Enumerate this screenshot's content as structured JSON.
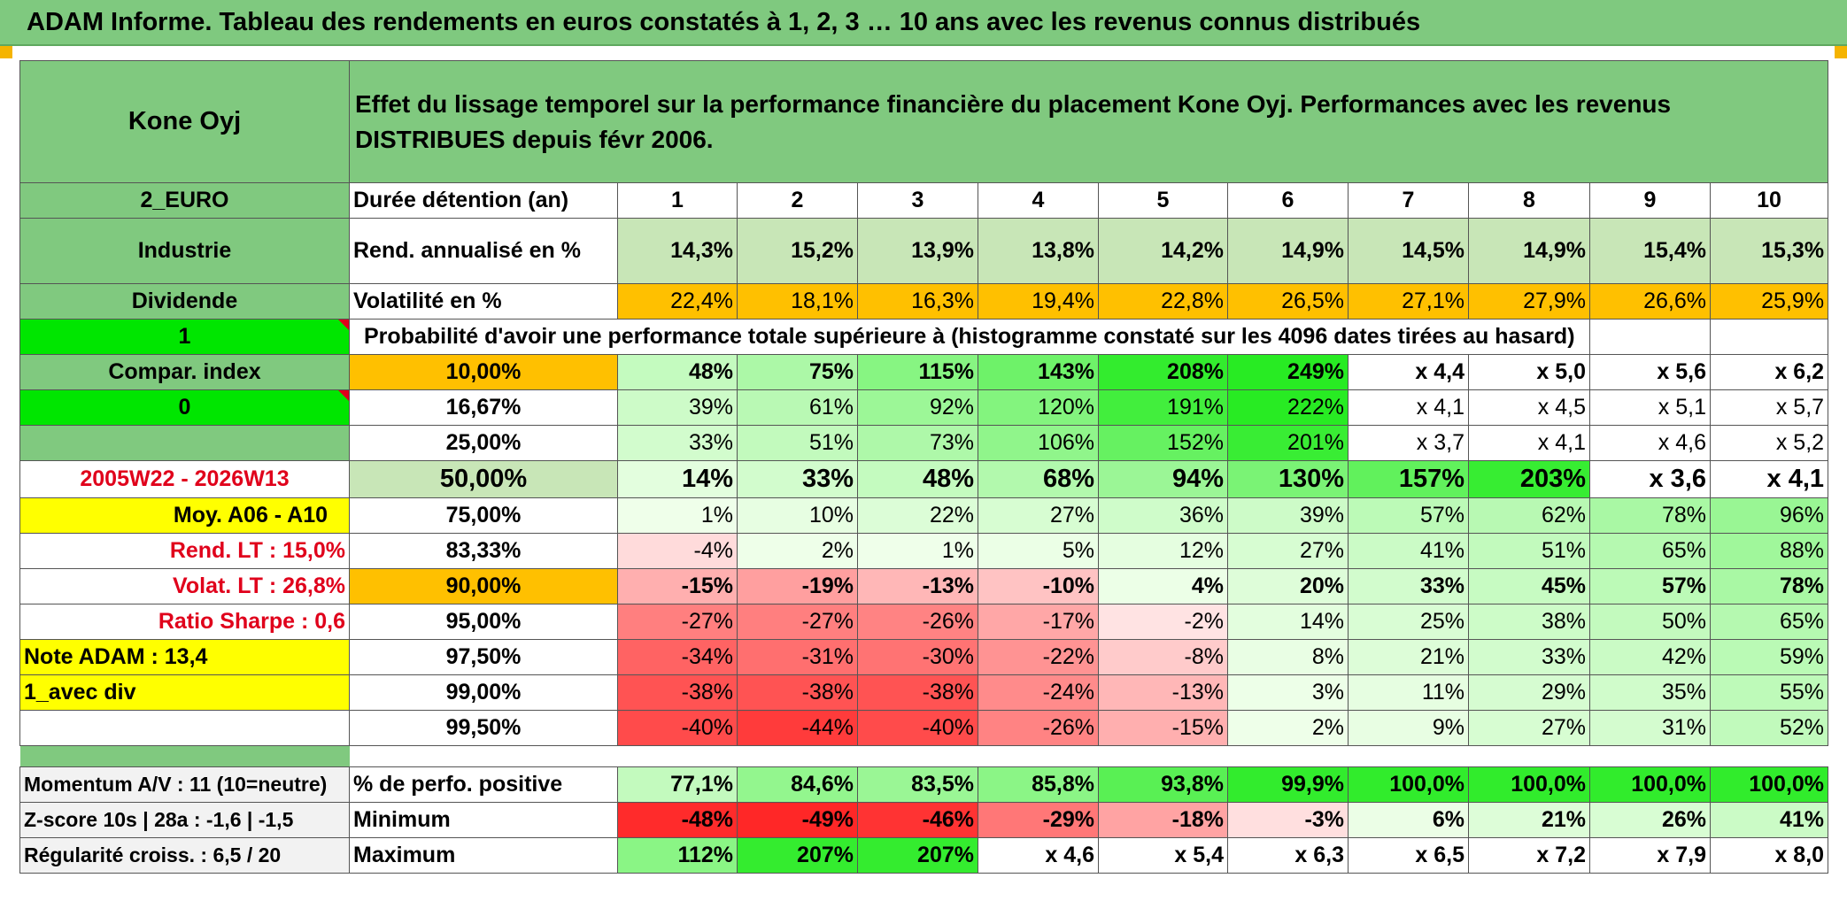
{
  "title": "ADAM Informe. Tableau des rendements en euros constatés à 1, 2, 3 … 10 ans avec les revenus connus distribués",
  "header": {
    "name": "Kone Oyj",
    "description": "Effet du lissage temporel sur la performance financière du placement Kone Oyj. Performances avec les revenus DISTRIBUES depuis févr 2006."
  },
  "left": {
    "zone": "2_EURO",
    "sector": "Industrie",
    "dividend": "Dividende",
    "flag1": "1",
    "compar": "Compar. index",
    "flag0": "0",
    "period": "2005W22 - 2026W13",
    "moy": "Moy. A06 - A10",
    "rend_lt": "Rend. LT :   15,0%",
    "volat_lt": "Volat. LT :   26,8%",
    "sharpe": "Ratio Sharpe :   0,6",
    "note": "Note ADAM : 13,4",
    "avec_div": "1_avec div",
    "momentum": "Momentum A/V : 11 (10=neutre)",
    "zscore": "Z-score 10s | 28a : -1,6 | -1,5",
    "regularite": "Régularité croiss. : 6,5 / 20"
  },
  "rows": {
    "duree_label": "Durée détention (an)",
    "years": [
      "1",
      "2",
      "3",
      "4",
      "5",
      "6",
      "7",
      "8",
      "9",
      "10"
    ],
    "rend_label": "Rend. annualisé en %",
    "rend": [
      "14,3%",
      "15,2%",
      "13,9%",
      "13,8%",
      "14,2%",
      "14,9%",
      "14,5%",
      "14,9%",
      "15,4%",
      "15,3%"
    ],
    "vol_label": "Volatilité en %",
    "vol": [
      "22,4%",
      "18,1%",
      "16,3%",
      "19,4%",
      "22,8%",
      "26,5%",
      "27,1%",
      "27,9%",
      "26,6%",
      "25,9%"
    ],
    "prob_label": "Probabilité d'avoir une performance totale supérieure à (histogramme constaté sur les 4096 dates tirées au hasard)",
    "probs": [
      {
        "level": "10,00%",
        "values": [
          "48%",
          "75%",
          "115%",
          "143%",
          "208%",
          "249%",
          "x 4,4",
          "x 5,0",
          "x 5,6",
          "x 6,2"
        ]
      },
      {
        "level": "16,67%",
        "values": [
          "39%",
          "61%",
          "92%",
          "120%",
          "191%",
          "222%",
          "x 4,1",
          "x 4,5",
          "x 5,1",
          "x 5,7"
        ]
      },
      {
        "level": "25,00%",
        "values": [
          "33%",
          "51%",
          "73%",
          "106%",
          "152%",
          "201%",
          "x 3,7",
          "x 4,1",
          "x 4,6",
          "x 5,2"
        ]
      },
      {
        "level": "50,00%",
        "values": [
          "14%",
          "33%",
          "48%",
          "68%",
          "94%",
          "130%",
          "157%",
          "203%",
          "x 3,6",
          "x 4,1"
        ]
      },
      {
        "level": "75,00%",
        "values": [
          "1%",
          "10%",
          "22%",
          "27%",
          "36%",
          "39%",
          "57%",
          "62%",
          "78%",
          "96%"
        ]
      },
      {
        "level": "83,33%",
        "values": [
          "-4%",
          "2%",
          "1%",
          "5%",
          "12%",
          "27%",
          "41%",
          "51%",
          "65%",
          "88%"
        ]
      },
      {
        "level": "90,00%",
        "values": [
          "-15%",
          "-19%",
          "-13%",
          "-10%",
          "4%",
          "20%",
          "33%",
          "45%",
          "57%",
          "78%"
        ]
      },
      {
        "level": "95,00%",
        "values": [
          "-27%",
          "-27%",
          "-26%",
          "-17%",
          "-2%",
          "14%",
          "25%",
          "38%",
          "50%",
          "65%"
        ]
      },
      {
        "level": "97,50%",
        "values": [
          "-34%",
          "-31%",
          "-30%",
          "-22%",
          "-8%",
          "8%",
          "21%",
          "33%",
          "42%",
          "59%"
        ]
      },
      {
        "level": "99,00%",
        "values": [
          "-38%",
          "-38%",
          "-38%",
          "-24%",
          "-13%",
          "3%",
          "11%",
          "29%",
          "35%",
          "55%"
        ]
      },
      {
        "level": "99,50%",
        "values": [
          "-40%",
          "-44%",
          "-40%",
          "-26%",
          "-15%",
          "2%",
          "9%",
          "27%",
          "31%",
          "52%"
        ]
      }
    ],
    "pos_label": "% de perfo. positive",
    "pos": [
      "77,1%",
      "84,6%",
      "83,5%",
      "85,8%",
      "93,8%",
      "99,9%",
      "100,0%",
      "100,0%",
      "100,0%",
      "100,0%"
    ],
    "min_label": "Minimum",
    "min": [
      "-48%",
      "-49%",
      "-46%",
      "-29%",
      "-18%",
      "-3%",
      "6%",
      "21%",
      "26%",
      "41%"
    ],
    "max_label": "Maximum",
    "max": [
      "112%",
      "207%",
      "207%",
      "x 4,6",
      "x 5,4",
      "x 6,3",
      "x 6,5",
      "x 7,2",
      "x 7,9",
      "x 8,0"
    ]
  },
  "colors": {
    "header_green": "#80c97f",
    "bright_green": "#00e600",
    "orange": "#ffc000",
    "yellow": "#ffff00",
    "red_text": "#e0001b"
  }
}
